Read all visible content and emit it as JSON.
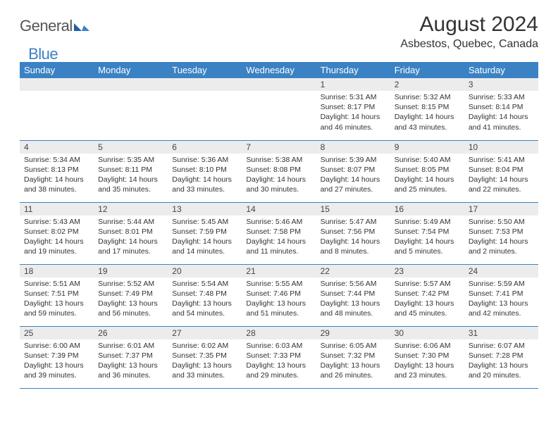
{
  "brand": {
    "general": "General",
    "blue": "Blue"
  },
  "title": "August 2024",
  "location": "Asbestos, Quebec, Canada",
  "colors": {
    "header_bg": "#3b82c4",
    "header_text": "#ffffff",
    "daynum_bg": "#ececec",
    "border": "#3b82c4",
    "body_text": "#333333",
    "logo_blue": "#3b82c4",
    "logo_gray": "#555555"
  },
  "day_headers": [
    "Sunday",
    "Monday",
    "Tuesday",
    "Wednesday",
    "Thursday",
    "Friday",
    "Saturday"
  ],
  "weeks": [
    [
      {
        "n": "",
        "sr": "",
        "ss": "",
        "dl": ""
      },
      {
        "n": "",
        "sr": "",
        "ss": "",
        "dl": ""
      },
      {
        "n": "",
        "sr": "",
        "ss": "",
        "dl": ""
      },
      {
        "n": "",
        "sr": "",
        "ss": "",
        "dl": ""
      },
      {
        "n": "1",
        "sr": "Sunrise: 5:31 AM",
        "ss": "Sunset: 8:17 PM",
        "dl": "Daylight: 14 hours and 46 minutes."
      },
      {
        "n": "2",
        "sr": "Sunrise: 5:32 AM",
        "ss": "Sunset: 8:15 PM",
        "dl": "Daylight: 14 hours and 43 minutes."
      },
      {
        "n": "3",
        "sr": "Sunrise: 5:33 AM",
        "ss": "Sunset: 8:14 PM",
        "dl": "Daylight: 14 hours and 41 minutes."
      }
    ],
    [
      {
        "n": "4",
        "sr": "Sunrise: 5:34 AM",
        "ss": "Sunset: 8:13 PM",
        "dl": "Daylight: 14 hours and 38 minutes."
      },
      {
        "n": "5",
        "sr": "Sunrise: 5:35 AM",
        "ss": "Sunset: 8:11 PM",
        "dl": "Daylight: 14 hours and 35 minutes."
      },
      {
        "n": "6",
        "sr": "Sunrise: 5:36 AM",
        "ss": "Sunset: 8:10 PM",
        "dl": "Daylight: 14 hours and 33 minutes."
      },
      {
        "n": "7",
        "sr": "Sunrise: 5:38 AM",
        "ss": "Sunset: 8:08 PM",
        "dl": "Daylight: 14 hours and 30 minutes."
      },
      {
        "n": "8",
        "sr": "Sunrise: 5:39 AM",
        "ss": "Sunset: 8:07 PM",
        "dl": "Daylight: 14 hours and 27 minutes."
      },
      {
        "n": "9",
        "sr": "Sunrise: 5:40 AM",
        "ss": "Sunset: 8:05 PM",
        "dl": "Daylight: 14 hours and 25 minutes."
      },
      {
        "n": "10",
        "sr": "Sunrise: 5:41 AM",
        "ss": "Sunset: 8:04 PM",
        "dl": "Daylight: 14 hours and 22 minutes."
      }
    ],
    [
      {
        "n": "11",
        "sr": "Sunrise: 5:43 AM",
        "ss": "Sunset: 8:02 PM",
        "dl": "Daylight: 14 hours and 19 minutes."
      },
      {
        "n": "12",
        "sr": "Sunrise: 5:44 AM",
        "ss": "Sunset: 8:01 PM",
        "dl": "Daylight: 14 hours and 17 minutes."
      },
      {
        "n": "13",
        "sr": "Sunrise: 5:45 AM",
        "ss": "Sunset: 7:59 PM",
        "dl": "Daylight: 14 hours and 14 minutes."
      },
      {
        "n": "14",
        "sr": "Sunrise: 5:46 AM",
        "ss": "Sunset: 7:58 PM",
        "dl": "Daylight: 14 hours and 11 minutes."
      },
      {
        "n": "15",
        "sr": "Sunrise: 5:47 AM",
        "ss": "Sunset: 7:56 PM",
        "dl": "Daylight: 14 hours and 8 minutes."
      },
      {
        "n": "16",
        "sr": "Sunrise: 5:49 AM",
        "ss": "Sunset: 7:54 PM",
        "dl": "Daylight: 14 hours and 5 minutes."
      },
      {
        "n": "17",
        "sr": "Sunrise: 5:50 AM",
        "ss": "Sunset: 7:53 PM",
        "dl": "Daylight: 14 hours and 2 minutes."
      }
    ],
    [
      {
        "n": "18",
        "sr": "Sunrise: 5:51 AM",
        "ss": "Sunset: 7:51 PM",
        "dl": "Daylight: 13 hours and 59 minutes."
      },
      {
        "n": "19",
        "sr": "Sunrise: 5:52 AM",
        "ss": "Sunset: 7:49 PM",
        "dl": "Daylight: 13 hours and 56 minutes."
      },
      {
        "n": "20",
        "sr": "Sunrise: 5:54 AM",
        "ss": "Sunset: 7:48 PM",
        "dl": "Daylight: 13 hours and 54 minutes."
      },
      {
        "n": "21",
        "sr": "Sunrise: 5:55 AM",
        "ss": "Sunset: 7:46 PM",
        "dl": "Daylight: 13 hours and 51 minutes."
      },
      {
        "n": "22",
        "sr": "Sunrise: 5:56 AM",
        "ss": "Sunset: 7:44 PM",
        "dl": "Daylight: 13 hours and 48 minutes."
      },
      {
        "n": "23",
        "sr": "Sunrise: 5:57 AM",
        "ss": "Sunset: 7:42 PM",
        "dl": "Daylight: 13 hours and 45 minutes."
      },
      {
        "n": "24",
        "sr": "Sunrise: 5:59 AM",
        "ss": "Sunset: 7:41 PM",
        "dl": "Daylight: 13 hours and 42 minutes."
      }
    ],
    [
      {
        "n": "25",
        "sr": "Sunrise: 6:00 AM",
        "ss": "Sunset: 7:39 PM",
        "dl": "Daylight: 13 hours and 39 minutes."
      },
      {
        "n": "26",
        "sr": "Sunrise: 6:01 AM",
        "ss": "Sunset: 7:37 PM",
        "dl": "Daylight: 13 hours and 36 minutes."
      },
      {
        "n": "27",
        "sr": "Sunrise: 6:02 AM",
        "ss": "Sunset: 7:35 PM",
        "dl": "Daylight: 13 hours and 33 minutes."
      },
      {
        "n": "28",
        "sr": "Sunrise: 6:03 AM",
        "ss": "Sunset: 7:33 PM",
        "dl": "Daylight: 13 hours and 29 minutes."
      },
      {
        "n": "29",
        "sr": "Sunrise: 6:05 AM",
        "ss": "Sunset: 7:32 PM",
        "dl": "Daylight: 13 hours and 26 minutes."
      },
      {
        "n": "30",
        "sr": "Sunrise: 6:06 AM",
        "ss": "Sunset: 7:30 PM",
        "dl": "Daylight: 13 hours and 23 minutes."
      },
      {
        "n": "31",
        "sr": "Sunrise: 6:07 AM",
        "ss": "Sunset: 7:28 PM",
        "dl": "Daylight: 13 hours and 20 minutes."
      }
    ]
  ]
}
